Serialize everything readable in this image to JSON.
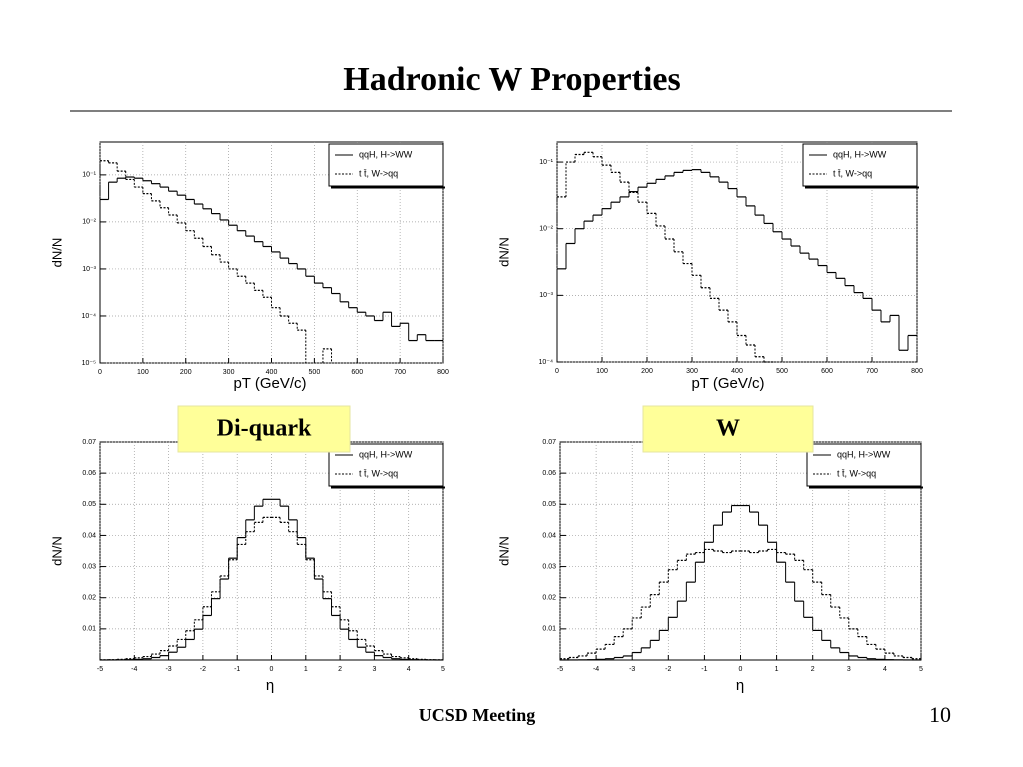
{
  "title": "Hadronic W Properties",
  "footer": "UCSD Meeting",
  "page_number": "10",
  "labels": [
    "Di-quark",
    "W"
  ],
  "chart_data": [
    {
      "type": "histogram",
      "x_label": "pT (GeV/c)",
      "y_label": "dN/N",
      "log_y": true,
      "grid": true,
      "legend": "top-right",
      "xlim": [
        0,
        800
      ],
      "xticks": [
        0,
        100,
        200,
        300,
        400,
        500,
        600,
        700,
        800
      ],
      "ylim": [
        1e-05,
        0.5
      ],
      "yticks": [
        {
          "value": 1e-05,
          "label": "10⁻⁵"
        },
        {
          "value": 0.0001,
          "label": "10⁻⁴"
        },
        {
          "value": 0.001,
          "label": "10⁻³"
        },
        {
          "value": 0.01,
          "label": "10⁻²"
        },
        {
          "value": 0.1,
          "label": "10⁻¹"
        }
      ],
      "bins": [
        0,
        20,
        40,
        60,
        80,
        100,
        120,
        140,
        160,
        180,
        200,
        220,
        240,
        260,
        280,
        300,
        320,
        340,
        360,
        380,
        400,
        420,
        440,
        460,
        480,
        500,
        520,
        540,
        560,
        580,
        600,
        620,
        640,
        660,
        680,
        700,
        720,
        740,
        760,
        780,
        800
      ],
      "series": [
        {
          "name": "qqH, H->WW",
          "color": "#000000",
          "style": "solid",
          "values": [
            0.03,
            0.07,
            0.085,
            0.09,
            0.085,
            0.075,
            0.065,
            0.055,
            0.045,
            0.037,
            0.03,
            0.024,
            0.019,
            0.015,
            0.011,
            0.0085,
            0.0065,
            0.005,
            0.0038,
            0.003,
            0.0023,
            0.0017,
            0.0013,
            0.001,
            0.0007,
            0.0005,
            0.0004,
            0.0003,
            0.0002,
            0.00015,
            0.00012,
            0.0001,
            8e-05,
            0.00012,
            6e-05,
            7e-05,
            3e-05,
            4e-05,
            3e-05,
            3e-05
          ]
        },
        {
          "name": "t t̄, W->qq",
          "color": "#000000",
          "style": "dotted",
          "values": [
            0.2,
            0.18,
            0.12,
            0.08,
            0.055,
            0.04,
            0.028,
            0.02,
            0.014,
            0.0095,
            0.0065,
            0.0045,
            0.003,
            0.002,
            0.0014,
            0.001,
            0.0007,
            0.0005,
            0.00035,
            0.00025,
            0.00015,
            0.0001,
            7e-05,
            5e-05,
            null,
            null,
            2e-05,
            null,
            null,
            null,
            null,
            null,
            null,
            null,
            null,
            null,
            null,
            null,
            null,
            null
          ]
        }
      ]
    },
    {
      "type": "histogram",
      "x_label": "pT (GeV/c)",
      "y_label": "dN/N",
      "log_y": true,
      "grid": true,
      "legend": "top-right",
      "xlim": [
        0,
        800
      ],
      "xticks": [
        0,
        100,
        200,
        300,
        400,
        500,
        600,
        700,
        800
      ],
      "ylim": [
        0.0001,
        0.2
      ],
      "yticks": [
        {
          "value": 0.0001,
          "label": "10⁻⁴"
        },
        {
          "value": 0.001,
          "label": "10⁻³"
        },
        {
          "value": 0.01,
          "label": "10⁻²"
        },
        {
          "value": 0.1,
          "label": "10⁻¹"
        }
      ],
      "bins": [
        0,
        20,
        40,
        60,
        80,
        100,
        120,
        140,
        160,
        180,
        200,
        220,
        240,
        260,
        280,
        300,
        320,
        340,
        360,
        380,
        400,
        420,
        440,
        460,
        480,
        500,
        520,
        540,
        560,
        580,
        600,
        620,
        640,
        660,
        680,
        700,
        720,
        740,
        760,
        780,
        800
      ],
      "series": [
        {
          "name": "qqH, H->WW",
          "color": "#000000",
          "style": "solid",
          "values": [
            0.0025,
            0.006,
            0.01,
            0.013,
            0.016,
            0.02,
            0.025,
            0.03,
            0.036,
            0.042,
            0.048,
            0.055,
            0.062,
            0.07,
            0.075,
            0.077,
            0.07,
            0.06,
            0.05,
            0.04,
            0.03,
            0.022,
            0.016,
            0.012,
            0.009,
            0.007,
            0.0055,
            0.0043,
            0.0035,
            0.0028,
            0.0022,
            0.0018,
            0.0014,
            0.0011,
            0.0009,
            0.0006,
            0.0004,
            0.0005,
            0.00015,
            0.00025
          ]
        },
        {
          "name": "t t̄, W->qq",
          "color": "#000000",
          "style": "dotted",
          "values": [
            0.03,
            0.1,
            0.13,
            0.14,
            0.12,
            0.09,
            0.07,
            0.05,
            0.035,
            0.025,
            0.017,
            0.011,
            0.007,
            0.0045,
            0.003,
            0.002,
            0.0013,
            0.0009,
            0.0006,
            0.0004,
            0.00025,
            0.00018,
            0.00012,
            0.0001,
            null,
            null,
            null,
            null,
            null,
            null,
            null,
            null,
            null,
            null,
            null,
            null,
            null,
            null,
            null,
            null
          ]
        }
      ]
    },
    {
      "type": "histogram",
      "x_label": "η",
      "y_label": "dN/N",
      "log_y": false,
      "grid": true,
      "legend": "top-right",
      "xlim": [
        -5,
        5
      ],
      "xticks": [
        -5,
        -4,
        -3,
        -2,
        -1,
        0,
        1,
        2,
        3,
        4,
        5
      ],
      "ylim": [
        0,
        0.07
      ],
      "yticks": [
        0.01,
        0.02,
        0.03,
        0.04,
        0.05,
        0.06,
        0.07
      ],
      "bins": [
        -5,
        -4.75,
        -4.5,
        -4.25,
        -4,
        -3.75,
        -3.5,
        -3.25,
        -3,
        -2.75,
        -2.5,
        -2.25,
        -2,
        -1.75,
        -1.5,
        -1.25,
        -1,
        -0.75,
        -0.5,
        -0.25,
        0,
        0.25,
        0.5,
        0.75,
        1,
        1.25,
        1.5,
        1.75,
        2,
        2.25,
        2.5,
        2.75,
        3,
        3.25,
        3.5,
        3.75,
        4,
        4.25,
        4.5,
        4.75,
        5
      ],
      "series": [
        {
          "name": "qqH, H->WW",
          "color": "#000000",
          "style": "solid",
          "values": [
            1e-05,
            2e-05,
            5e-05,
            0.0001,
            0.0002,
            0.0004,
            0.0008,
            0.0014,
            0.0025,
            0.0041,
            0.0066,
            0.0099,
            0.0143,
            0.0197,
            0.026,
            0.0327,
            0.0393,
            0.045,
            0.0494,
            0.0516,
            0.0516,
            0.0494,
            0.045,
            0.0393,
            0.0327,
            0.026,
            0.0197,
            0.0143,
            0.0099,
            0.0066,
            0.0041,
            0.0025,
            0.0014,
            0.0008,
            0.0004,
            0.0002,
            0.0001,
            5e-05,
            2e-05,
            1e-05
          ]
        },
        {
          "name": "t t̄, W->qq",
          "color": "#000000",
          "style": "dotted",
          "values": [
            5e-05,
            0.0001,
            0.0002,
            0.0004,
            0.0007,
            0.0011,
            0.0019,
            0.003,
            0.0045,
            0.0066,
            0.0094,
            0.0129,
            0.0171,
            0.0219,
            0.027,
            0.0322,
            0.0371,
            0.0412,
            0.0442,
            0.0458,
            0.0458,
            0.0442,
            0.0412,
            0.0371,
            0.0322,
            0.027,
            0.0219,
            0.0171,
            0.0129,
            0.0094,
            0.0066,
            0.0045,
            0.003,
            0.0019,
            0.0011,
            0.0007,
            0.0004,
            0.0002,
            0.0001,
            5e-05
          ]
        }
      ]
    },
    {
      "type": "histogram",
      "x_label": "η",
      "y_label": "dN/N",
      "log_y": false,
      "grid": true,
      "legend": "top-right",
      "xlim": [
        -5,
        5
      ],
      "xticks": [
        -5,
        -4,
        -3,
        -2,
        -1,
        0,
        1,
        2,
        3,
        4,
        5
      ],
      "ylim": [
        0,
        0.07
      ],
      "yticks": [
        0.01,
        0.02,
        0.03,
        0.04,
        0.05,
        0.06,
        0.07
      ],
      "bins": [
        -5,
        -4.75,
        -4.5,
        -4.25,
        -4,
        -3.75,
        -3.5,
        -3.25,
        -3,
        -2.75,
        -2.5,
        -2.25,
        -2,
        -1.75,
        -1.5,
        -1.25,
        -1,
        -0.75,
        -0.5,
        -0.25,
        0,
        0.25,
        0.5,
        0.75,
        1,
        1.25,
        1.5,
        1.75,
        2,
        2.25,
        2.5,
        2.75,
        3,
        3.25,
        3.5,
        3.75,
        4,
        4.25,
        4.5,
        4.75,
        5
      ],
      "series": [
        {
          "name": "qqH, H->WW",
          "color": "#000000",
          "style": "solid",
          "values": [
            1e-05,
            2e-05,
            5e-05,
            0.0001,
            0.0002,
            0.0004,
            0.0008,
            0.0013,
            0.0024,
            0.0039,
            0.0063,
            0.0095,
            0.0137,
            0.0189,
            0.025,
            0.0314,
            0.0378,
            0.0433,
            0.0475,
            0.0496,
            0.0496,
            0.0475,
            0.0433,
            0.0378,
            0.0314,
            0.025,
            0.0189,
            0.0137,
            0.0095,
            0.0063,
            0.0039,
            0.0024,
            0.0013,
            0.0008,
            0.0004,
            0.0002,
            0.0001,
            5e-05,
            2e-05,
            1e-05
          ]
        },
        {
          "name": "t t̄, W->qq",
          "color": "#000000",
          "style": "dotted",
          "values": [
            0.0004,
            0.0008,
            0.0013,
            0.0022,
            0.0035,
            0.005,
            0.0075,
            0.01,
            0.0135,
            0.017,
            0.021,
            0.025,
            0.029,
            0.032,
            0.034,
            0.0345,
            0.0355,
            0.035,
            0.0345,
            0.035,
            0.035,
            0.0345,
            0.035,
            0.0355,
            0.0345,
            0.034,
            0.032,
            0.029,
            0.025,
            0.021,
            0.017,
            0.0135,
            0.01,
            0.0075,
            0.005,
            0.0035,
            0.0022,
            0.0013,
            0.0008,
            0.0004
          ]
        }
      ]
    }
  ]
}
